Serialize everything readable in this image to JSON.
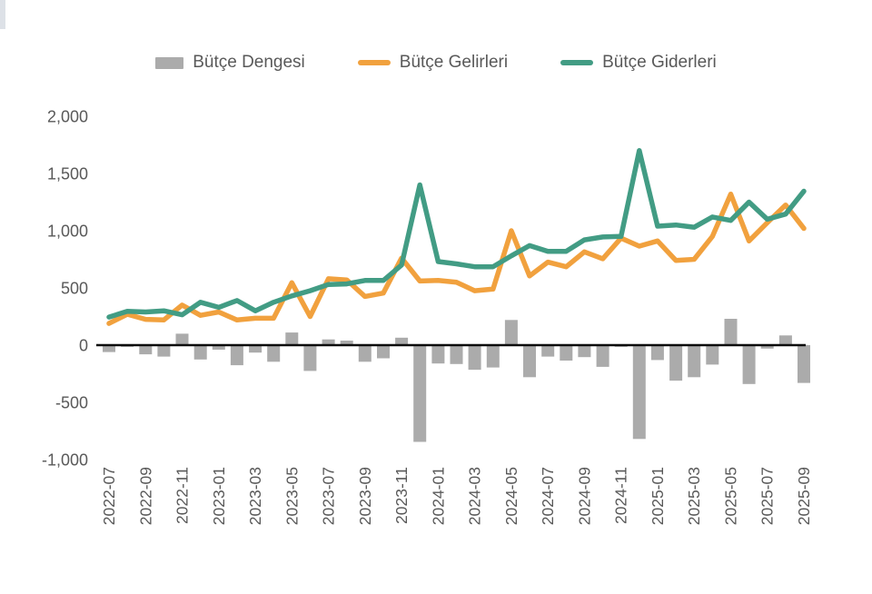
{
  "legend": [
    {
      "label": "Bütçe Dengesi",
      "type": "bar",
      "color": "#ABABAB"
    },
    {
      "label": "Bütçe Gelirleri",
      "type": "line",
      "color": "#F1A13E"
    },
    {
      "label": "Bütçe Giderleri",
      "type": "line",
      "color": "#429C84"
    }
  ],
  "y_axis": {
    "tick_labels": [
      "2,000",
      "1,500",
      "1,000",
      "500",
      "0",
      "-500",
      "-1,000"
    ],
    "tick_values": [
      2000,
      1500,
      1000,
      500,
      0,
      -500,
      -1000
    ],
    "min": -1000,
    "max": 2000
  },
  "x_axis": {
    "visible_tick_labels": [
      "2022-07",
      "2022-09",
      "2022-11",
      "2023-01",
      "2023-03",
      "2023-05",
      "2023-07",
      "2023-09",
      "2023-11",
      "2024-01",
      "2024-03",
      "2024-05",
      "2024-07",
      "2024-09",
      "2024-11",
      "2025-01",
      "2025-03",
      "2025-05",
      "2025-07",
      "2025-09"
    ],
    "label_every_n_months": 2
  },
  "chart_data": {
    "type": "bar",
    "subtype": "bar-line-combo",
    "title": "",
    "xlabel": "",
    "ylabel": "",
    "ylim": [
      -1000,
      2000
    ],
    "grid": false,
    "legend_position": "top",
    "categories": [
      "2022-07",
      "2022-08",
      "2022-09",
      "2022-10",
      "2022-11",
      "2022-12",
      "2023-01",
      "2023-02",
      "2023-03",
      "2023-04",
      "2023-05",
      "2023-06",
      "2023-07",
      "2023-08",
      "2023-09",
      "2023-10",
      "2023-11",
      "2023-12",
      "2024-01",
      "2024-02",
      "2024-03",
      "2024-04",
      "2024-05",
      "2024-06",
      "2024-07",
      "2024-08",
      "2024-09",
      "2024-10",
      "2024-11",
      "2024-12",
      "2025-01",
      "2025-02",
      "2025-03",
      "2025-04",
      "2025-05",
      "2025-06",
      "2025-07",
      "2025-08",
      "2025-09"
    ],
    "series": [
      {
        "name": "Bütçe Dengesi",
        "render": "bar",
        "color": "#ABABAB",
        "values": [
          -60,
          -15,
          -80,
          -100,
          100,
          -125,
          -40,
          -175,
          -65,
          -145,
          110,
          -225,
          50,
          40,
          -145,
          -115,
          65,
          -845,
          -160,
          -165,
          -215,
          -195,
          220,
          -280,
          -100,
          -135,
          -105,
          -190,
          -15,
          -820,
          -130,
          -310,
          -280,
          -170,
          230,
          -340,
          -30,
          85,
          -330
        ]
      },
      {
        "name": "Bütçe Gelirleri",
        "render": "line",
        "color": "#F1A13E",
        "values": [
          190,
          270,
          225,
          220,
          350,
          260,
          290,
          220,
          235,
          235,
          545,
          250,
          580,
          570,
          425,
          455,
          760,
          560,
          565,
          550,
          475,
          490,
          1000,
          605,
          725,
          685,
          815,
          755,
          935,
          865,
          910,
          740,
          750,
          950,
          1320,
          910,
          1070,
          1225,
          1020
        ]
      },
      {
        "name": "Bütçe Giderleri",
        "render": "line",
        "color": "#429C84",
        "values": [
          245,
          295,
          290,
          300,
          265,
          375,
          330,
          390,
          300,
          375,
          430,
          475,
          530,
          535,
          565,
          565,
          700,
          1400,
          730,
          710,
          685,
          685,
          780,
          870,
          820,
          820,
          920,
          945,
          950,
          1700,
          1040,
          1050,
          1030,
          1120,
          1090,
          1250,
          1100,
          1145,
          1345
        ]
      }
    ]
  },
  "colors": {
    "background": "#FFFFFF",
    "axis_line": "#0D0D0D",
    "tick_text": "#595959",
    "bar": "#ABABAB",
    "revenues": "#F1A13E",
    "expenditures": "#429C84"
  }
}
